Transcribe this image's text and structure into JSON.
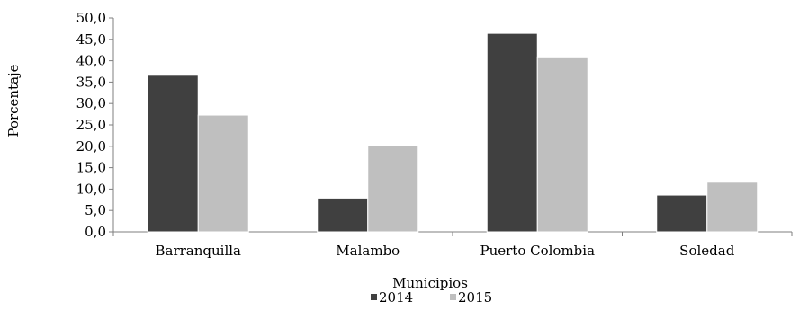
{
  "chart_data": {
    "type": "bar",
    "categories": [
      "Barranquilla",
      "Malambo",
      "Puerto Colombia",
      "Soledad"
    ],
    "series": [
      {
        "name": "2014",
        "values": [
          36.6,
          7.9,
          46.4,
          8.6
        ],
        "color": "#404040"
      },
      {
        "name": "2015",
        "values": [
          27.3,
          20.1,
          40.9,
          11.6
        ],
        "color": "#bfbfbf"
      }
    ],
    "xlabel": "Municipios",
    "ylabel": "Porcentaje",
    "ylim": [
      0,
      50
    ],
    "yticks": [
      "0,0",
      "5,0",
      "10,0",
      "15,0",
      "20,0",
      "25,0",
      "30,0",
      "35,0",
      "40,0",
      "45,0",
      "50,0"
    ],
    "grid": false,
    "legend_position": "bottom"
  }
}
